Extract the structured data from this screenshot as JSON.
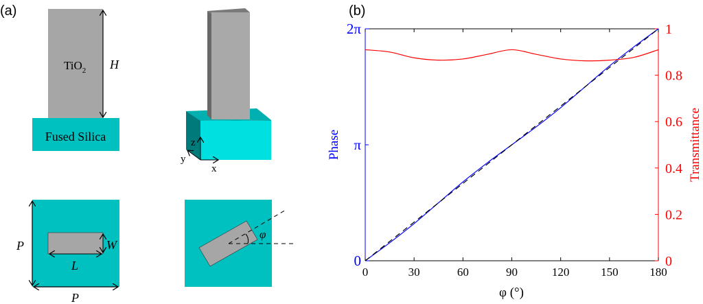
{
  "panel_a": {
    "label": "(a)",
    "material_pillar": "TiO",
    "material_pillar_sub": "2",
    "substrate": "Fused Silica",
    "height_label": "H",
    "width_label": "W",
    "length_label": "L",
    "period_label": "P",
    "angle_label": "φ",
    "axis_x": "x",
    "axis_y": "y",
    "axis_z": "z",
    "colors": {
      "pillar": "#a6a6a6",
      "substrate": "#00c0c0",
      "substrate_bright": "#00e0e0"
    }
  },
  "chart_data": {
    "panel_label": "(b)",
    "type": "line",
    "xlabel": "φ (°)",
    "ylabel_left": "Phase",
    "ylabel_right": "Transmittance",
    "xlim": [
      0,
      180
    ],
    "ylim_left": [
      0,
      2
    ],
    "ylim_left_unit": "π",
    "ylim_right": [
      0,
      1
    ],
    "x_ticks": [
      "0",
      "30",
      "60",
      "90",
      "120",
      "150",
      "180"
    ],
    "y_left_ticks": [
      "0",
      "π",
      "2π"
    ],
    "y_right_ticks": [
      "0",
      "0.2",
      "0.4",
      "0.6",
      "0.8",
      "1"
    ],
    "grid": false,
    "x": [
      0,
      15,
      30,
      45,
      60,
      75,
      90,
      105,
      120,
      135,
      150,
      165,
      180
    ],
    "series": [
      {
        "axis": "left",
        "color": "#0000ff",
        "style": "solid",
        "values": [
          0,
          0.155,
          0.32,
          0.5,
          0.68,
          0.845,
          1.0,
          1.155,
          1.32,
          1.5,
          1.68,
          1.845,
          2.0
        ]
      },
      {
        "axis": "left",
        "color": "#000000",
        "style": "dashed",
        "values": [
          0,
          0.1667,
          0.3333,
          0.5,
          0.6667,
          0.8333,
          1.0,
          1.1667,
          1.3333,
          1.5,
          1.6667,
          1.8333,
          2.0
        ]
      },
      {
        "axis": "right",
        "color": "#ff0000",
        "style": "solid",
        "values": [
          0.91,
          0.9,
          0.875,
          0.865,
          0.87,
          0.89,
          0.91,
          0.89,
          0.87,
          0.862,
          0.865,
          0.877,
          0.91
        ]
      }
    ],
    "colors": {
      "left_axis": "#0000ff",
      "right_axis": "#ff0000"
    }
  }
}
